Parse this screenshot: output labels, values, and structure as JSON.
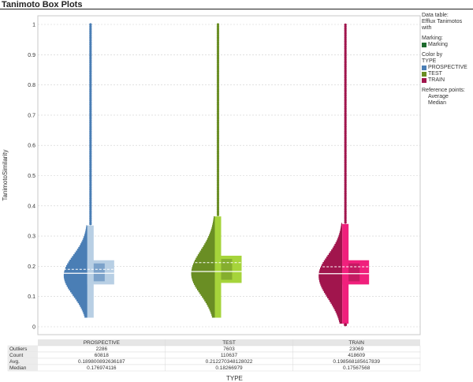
{
  "title": "Tanimoto Box Plots",
  "legend": {
    "data_table_label": "Data table:",
    "data_table_value": "Efflux Tanimotos with",
    "marking_label": "Marking:",
    "marking_item": "Marking",
    "marking_color": "#1e6b2e",
    "color_by_label": "Color by",
    "color_by_value": "TYPE",
    "reference_label": "Reference points:",
    "reference_items": [
      "Average",
      "Median"
    ]
  },
  "chart_data": {
    "type": "box",
    "title": "Tanimoto Box Plots",
    "xlabel": "TYPE",
    "ylabel": "TanimotoSimilarity",
    "ylim": [
      0,
      1
    ],
    "yticks": [
      "0",
      "0.1",
      "0.2",
      "0.3",
      "0.4",
      "0.5",
      "0.6",
      "0.7",
      "0.8",
      "0.9",
      "1"
    ],
    "grid": true,
    "legend_position": "right",
    "categories": [
      "PROSPECTIVE",
      "TEST",
      "TRAIN"
    ],
    "series": [
      {
        "name": "PROSPECTIVE",
        "color": "#4a7eb5",
        "light_color": "#b8cfe4",
        "whisker_low": 0.03,
        "q1": 0.14,
        "median": 0.176974116,
        "avg": 0.189800892636187,
        "q3": 0.22,
        "whisker_high": 0.335,
        "max": 1.0,
        "outliers": "2286",
        "count": "60818",
        "avg_label": "0.189800892636187",
        "median_label": "0.176974116"
      },
      {
        "name": "TEST",
        "color": "#6a8e24",
        "light_color": "#a6d43b",
        "whisker_low": 0.03,
        "q1": 0.145,
        "median": 0.18266979,
        "avg": 0.212270348128022,
        "q3": 0.235,
        "whisker_high": 0.365,
        "max": 1.0,
        "outliers": "7603",
        "count": "110637",
        "avg_label": "0.212270348128022",
        "median_label": "0.18266979"
      },
      {
        "name": "TRAIN",
        "color": "#a1154d",
        "light_color": "#f0207c",
        "whisker_low": 0.01,
        "q1": 0.14,
        "median": 0.17567568,
        "avg": 0.198568185617839,
        "q3": 0.22,
        "whisker_high": 0.34,
        "max": 1.0,
        "outliers": "23069",
        "count": "418609",
        "avg_label": "0.198568185617839",
        "median_label": "0.17567568"
      }
    ],
    "table": {
      "row_labels": [
        "Outliers",
        "Count",
        "Avg.",
        "Median"
      ]
    }
  }
}
